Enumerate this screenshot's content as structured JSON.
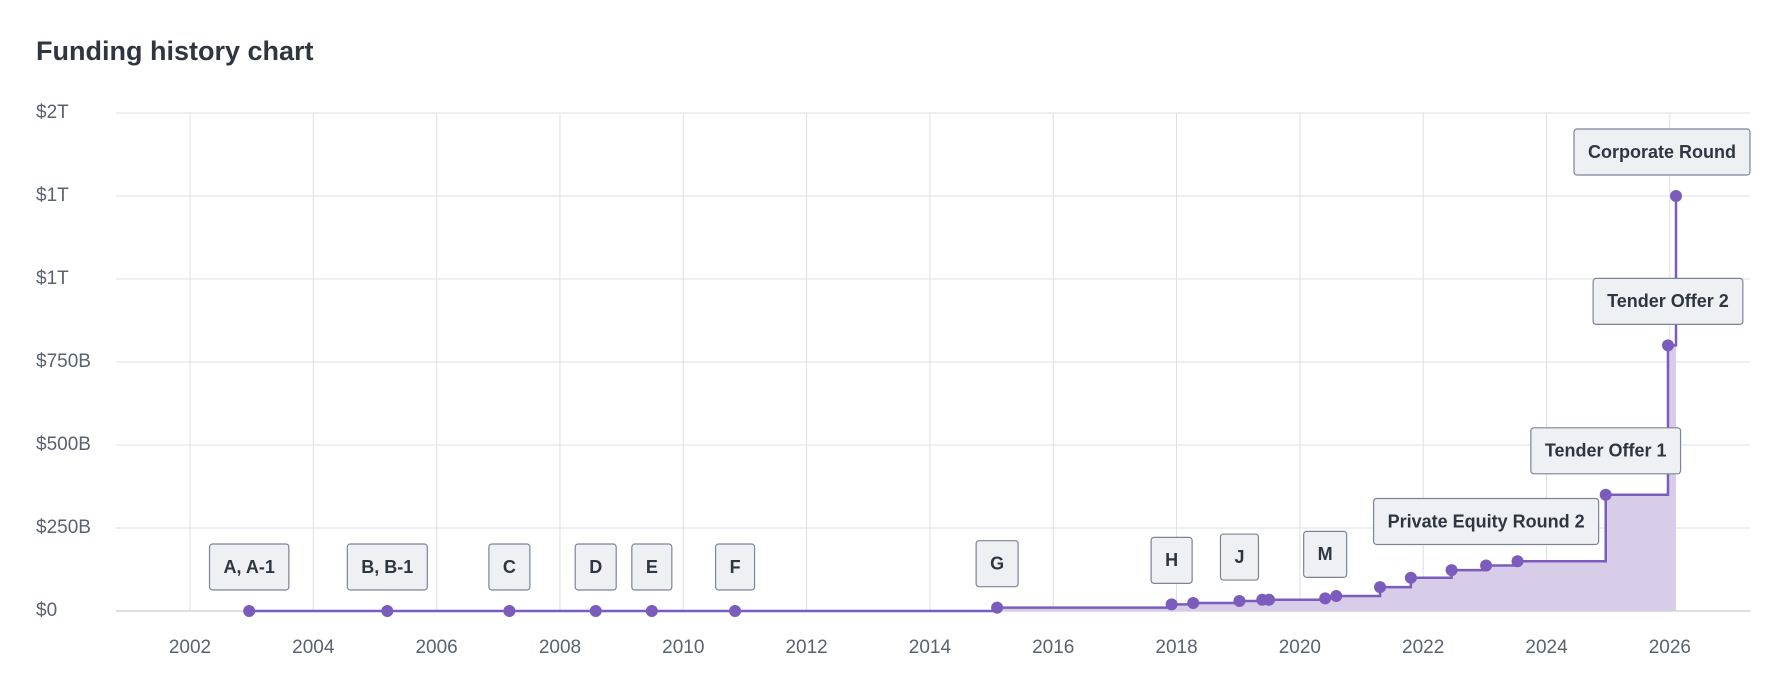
{
  "chart_data": {
    "type": "step",
    "title": "Funding history chart",
    "x": [
      2002.96,
      2005.2,
      2007.18,
      2008.58,
      2009.49,
      2010.84,
      2015.09,
      2017.92,
      2018.27,
      2019.02,
      2019.39,
      2019.5,
      2020.41,
      2020.59,
      2021.3,
      2021.8,
      2022.46,
      2023.02,
      2023.53,
      2024.96,
      2025.97,
      2026.1
    ],
    "values": [
      0,
      0,
      0,
      0,
      0,
      0,
      10,
      20,
      24,
      30,
      34,
      34,
      38,
      45,
      72,
      100,
      123,
      137,
      150,
      350,
      800,
      1250
    ],
    "point_labels": [
      "A, A-1",
      "B, B-1",
      "C",
      "D",
      "E",
      "F",
      "G",
      "H",
      null,
      "J",
      null,
      null,
      "M",
      null,
      null,
      null,
      null,
      "Private Equity Round 2",
      null,
      "Tender Offer 1",
      "Tender Offer 2",
      "Corporate Round"
    ],
    "color": "#7b5cbd",
    "fill_color": "#d8cde9",
    "xlim": [
      2000.8,
      2027.3
    ],
    "xticks": [
      2002,
      2004,
      2006,
      2008,
      2010,
      2012,
      2014,
      2016,
      2018,
      2020,
      2022,
      2024,
      2026
    ],
    "ylim": [
      0,
      1500
    ],
    "yticks": [
      {
        "value": 0,
        "label": "$0"
      },
      {
        "value": 250,
        "label": "$250B"
      },
      {
        "value": 500,
        "label": "$500B"
      },
      {
        "value": 750,
        "label": "$750B"
      },
      {
        "value": 1000,
        "label": "$1T"
      },
      {
        "value": 1250,
        "label": "$1T"
      },
      {
        "value": 1500,
        "label": "$2T"
      }
    ],
    "grid": true
  }
}
